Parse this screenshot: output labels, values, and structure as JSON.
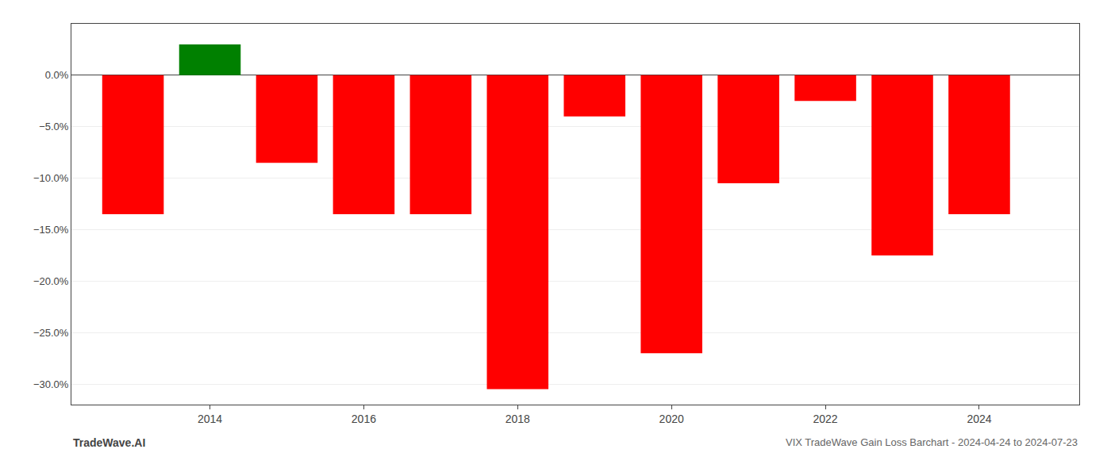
{
  "chart_data": {
    "type": "bar",
    "title": "VIX TradeWave Gain Loss Barchart - 2024-04-24 to 2024-07-23",
    "annotations": [
      "TradeWave.AI"
    ],
    "x": [
      2013,
      2014,
      2015,
      2016,
      2017,
      2018,
      2019,
      2020,
      2021,
      2022,
      2023,
      2024
    ],
    "values": [
      -13.5,
      3.0,
      -8.5,
      -13.5,
      -13.5,
      -30.5,
      -4.0,
      -27.0,
      -10.5,
      -2.5,
      -17.5,
      -13.5
    ],
    "colors": [
      "#ff0000",
      "#008000",
      "#ff0000",
      "#ff0000",
      "#ff0000",
      "#ff0000",
      "#ff0000",
      "#ff0000",
      "#ff0000",
      "#ff0000",
      "#ff0000",
      "#ff0000"
    ],
    "xlim": [
      2012.2,
      2025.3
    ],
    "xticks": [
      2014,
      2016,
      2018,
      2020,
      2022,
      2024
    ],
    "ylim": [
      -32,
      5
    ],
    "yticks": [
      {
        "value": 0.0,
        "label": "0.0%"
      },
      {
        "value": -5.0,
        "label": "−5.0%"
      },
      {
        "value": -10.0,
        "label": "−10.0%"
      },
      {
        "value": -15.0,
        "label": "−15.0%"
      },
      {
        "value": -20.0,
        "label": "−20.0%"
      },
      {
        "value": -25.0,
        "label": "−25.0%"
      },
      {
        "value": -30.0,
        "label": "−30.0%"
      }
    ],
    "grid": true
  }
}
